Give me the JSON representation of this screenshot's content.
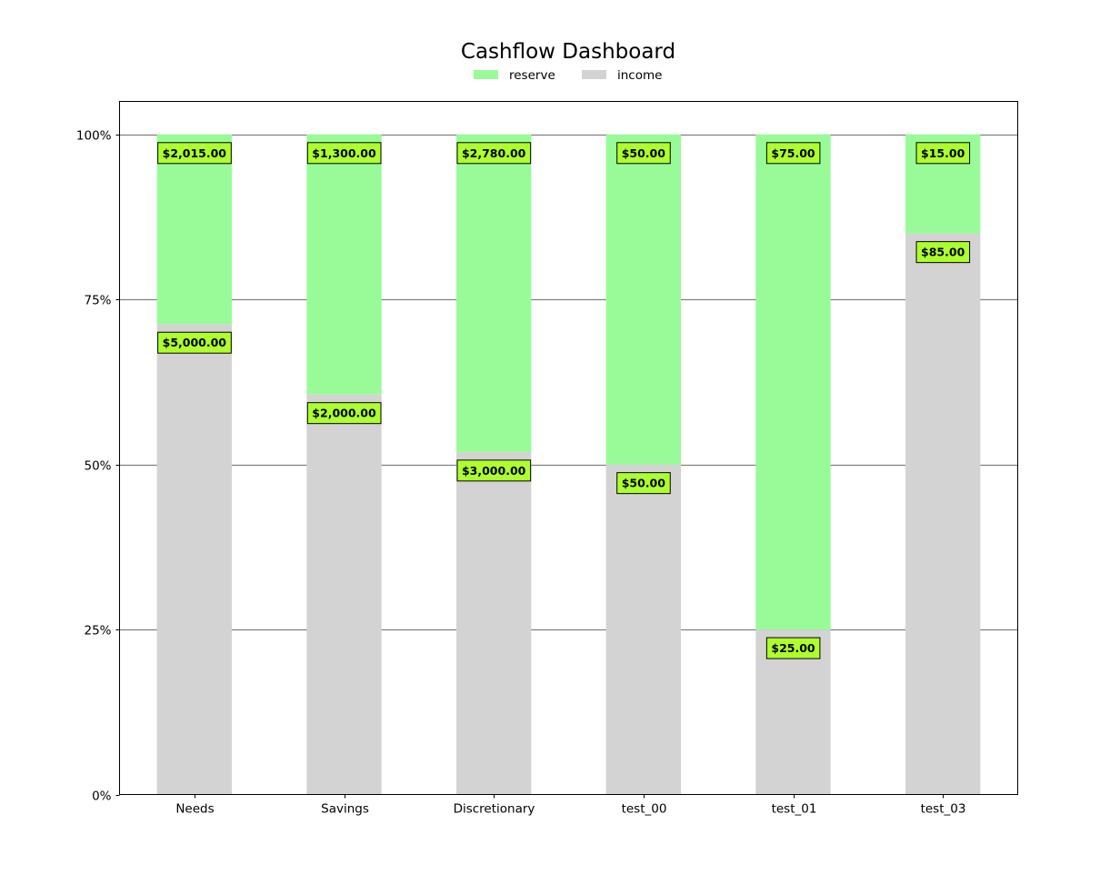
{
  "chart_data": {
    "type": "bar",
    "stacked": true,
    "normalized": true,
    "title": "Cashflow Dashboard",
    "xlabel": "",
    "ylabel": "",
    "categories": [
      "Needs",
      "Savings",
      "Discretionary",
      "test_00",
      "test_01",
      "test_03"
    ],
    "series": [
      {
        "name": "income",
        "color": "#d3d3d3",
        "values": [
          5000,
          2000,
          3000,
          50,
          25,
          85
        ],
        "labels": [
          "$5,000.00",
          "$2,000.00",
          "$3,000.00",
          "$50.00",
          "$25.00",
          "$85.00"
        ]
      },
      {
        "name": "reserve",
        "color": "#98fb98",
        "values": [
          2015,
          1300,
          2780,
          50,
          75,
          15
        ],
        "labels": [
          "$2,015.00",
          "$1,300.00",
          "$2,780.00",
          "$50.00",
          "$75.00",
          "$15.00"
        ]
      }
    ],
    "legend_order": [
      "reserve",
      "income"
    ],
    "legend_position": "top-center",
    "ylim": [
      0,
      1.05
    ],
    "yticks": [
      0,
      0.25,
      0.5,
      0.75,
      1.0
    ],
    "ytick_labels": [
      "0%",
      "25%",
      "50%",
      "75%",
      "100%"
    ],
    "grid": "y",
    "label_box_color": "#adff2f"
  }
}
